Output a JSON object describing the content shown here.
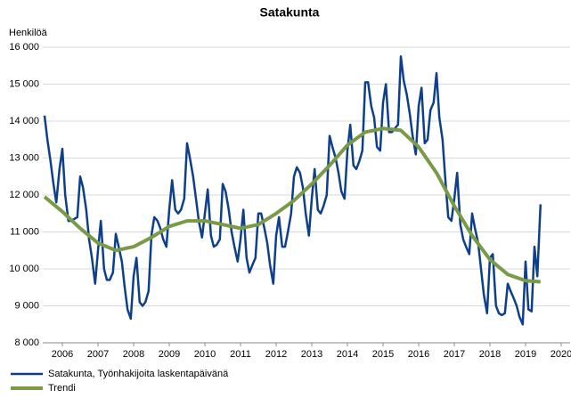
{
  "chart_data": {
    "type": "line",
    "title": "Satakunta",
    "y_label": "Henkilöä",
    "xlim": [
      2005.95,
      2020.75
    ],
    "ylim": [
      8000,
      16000
    ],
    "xticks": [
      {
        "value": 2006.5,
        "label": "2006"
      },
      {
        "value": 2007.5,
        "label": "2007"
      },
      {
        "value": 2008.5,
        "label": "2008"
      },
      {
        "value": 2009.5,
        "label": "2009"
      },
      {
        "value": 2010.5,
        "label": "2010"
      },
      {
        "value": 2011.5,
        "label": "2011"
      },
      {
        "value": 2012.5,
        "label": "2012"
      },
      {
        "value": 2013.5,
        "label": "2013"
      },
      {
        "value": 2014.5,
        "label": "2014"
      },
      {
        "value": 2015.5,
        "label": "2015"
      },
      {
        "value": 2016.5,
        "label": "2016"
      },
      {
        "value": 2017.5,
        "label": "2017"
      },
      {
        "value": 2018.5,
        "label": "2018"
      },
      {
        "value": 2019.5,
        "label": "2019"
      },
      {
        "value": 2020.5,
        "label": "2020"
      }
    ],
    "yticks": [
      {
        "value": 8000,
        "label": "8 000"
      },
      {
        "value": 9000,
        "label": "9 000"
      },
      {
        "value": 10000,
        "label": "10 000"
      },
      {
        "value": 11000,
        "label": "11 000"
      },
      {
        "value": 12000,
        "label": "12 000"
      },
      {
        "value": 13000,
        "label": "13 000"
      },
      {
        "value": 14000,
        "label": "14 000"
      },
      {
        "value": 15000,
        "label": "15 000"
      },
      {
        "value": 16000,
        "label": "16 000"
      }
    ],
    "grid": true,
    "legend": "bottom-left",
    "series": [
      {
        "name": "Satakunta, Työnhakijoita laskentapäivänä",
        "color": "#0d3f8a",
        "width": 2.5,
        "x": [
          2006.0,
          2006.08,
          2006.17,
          2006.25,
          2006.33,
          2006.42,
          2006.5,
          2006.58,
          2006.67,
          2006.75,
          2006.83,
          2006.92,
          2007.0,
          2007.08,
          2007.17,
          2007.25,
          2007.33,
          2007.42,
          2007.5,
          2007.58,
          2007.67,
          2007.75,
          2007.83,
          2007.92,
          2008.0,
          2008.08,
          2008.17,
          2008.25,
          2008.33,
          2008.42,
          2008.5,
          2008.58,
          2008.67,
          2008.75,
          2008.83,
          2008.92,
          2009.0,
          2009.08,
          2009.17,
          2009.25,
          2009.33,
          2009.42,
          2009.5,
          2009.58,
          2009.67,
          2009.75,
          2009.83,
          2009.92,
          2010.0,
          2010.08,
          2010.17,
          2010.25,
          2010.33,
          2010.42,
          2010.5,
          2010.58,
          2010.67,
          2010.75,
          2010.83,
          2010.92,
          2011.0,
          2011.08,
          2011.17,
          2011.25,
          2011.33,
          2011.42,
          2011.5,
          2011.58,
          2011.67,
          2011.75,
          2011.83,
          2011.92,
          2012.0,
          2012.08,
          2012.17,
          2012.25,
          2012.33,
          2012.42,
          2012.5,
          2012.58,
          2012.67,
          2012.75,
          2012.83,
          2012.92,
          2013.0,
          2013.08,
          2013.17,
          2013.25,
          2013.33,
          2013.42,
          2013.5,
          2013.58,
          2013.67,
          2013.75,
          2013.83,
          2013.92,
          2014.0,
          2014.08,
          2014.17,
          2014.25,
          2014.33,
          2014.42,
          2014.5,
          2014.58,
          2014.67,
          2014.75,
          2014.83,
          2014.92,
          2015.0,
          2015.08,
          2015.17,
          2015.25,
          2015.33,
          2015.42,
          2015.5,
          2015.58,
          2015.67,
          2015.75,
          2015.83,
          2015.92,
          2016.0,
          2016.08,
          2016.17,
          2016.25,
          2016.33,
          2016.42,
          2016.5,
          2016.58,
          2016.67,
          2016.75,
          2016.83,
          2016.92,
          2017.0,
          2017.08,
          2017.17,
          2017.25,
          2017.33,
          2017.42,
          2017.5,
          2017.58,
          2017.67,
          2017.75,
          2017.83,
          2017.92,
          2018.0,
          2018.08,
          2018.17,
          2018.25,
          2018.33,
          2018.42,
          2018.5,
          2018.58,
          2018.67,
          2018.75,
          2018.83,
          2018.92,
          2019.0,
          2019.08,
          2019.17,
          2019.25,
          2019.33,
          2019.42,
          2019.5,
          2019.58,
          2019.67,
          2019.75,
          2019.83,
          2019.92
        ],
        "values": [
          14150,
          13500,
          12900,
          12300,
          11800,
          12700,
          13250,
          12000,
          11300,
          11300,
          11350,
          11400,
          12500,
          12200,
          11600,
          10800,
          10300,
          9600,
          10500,
          11300,
          10000,
          9700,
          9700,
          9900,
          10950,
          10600,
          10200,
          9500,
          8900,
          8650,
          9800,
          10300,
          9100,
          9000,
          9100,
          9400,
          10900,
          11400,
          11300,
          11100,
          10800,
          10600,
          11600,
          12400,
          11600,
          11500,
          11600,
          11900,
          13400,
          13000,
          12500,
          11900,
          11300,
          10850,
          11500,
          12150,
          10900,
          10600,
          10650,
          10800,
          12300,
          12100,
          11600,
          11000,
          10600,
          10200,
          10800,
          11600,
          10300,
          9900,
          10100,
          10300,
          11500,
          11500,
          11100,
          10700,
          10100,
          9600,
          10900,
          11400,
          10600,
          10600,
          11000,
          11500,
          12500,
          12750,
          12600,
          12200,
          11500,
          10900,
          11900,
          12700,
          11600,
          11500,
          11700,
          12000,
          13600,
          13300,
          13000,
          12600,
          12100,
          11900,
          13200,
          13900,
          12800,
          12700,
          12900,
          13200,
          15050,
          15050,
          14400,
          14100,
          13300,
          13200,
          14500,
          15000,
          13700,
          13700,
          13800,
          13900,
          15750,
          15100,
          14700,
          14200,
          13600,
          13100,
          14400,
          14900,
          13400,
          13500,
          14300,
          14500,
          15300,
          14100,
          13500,
          12400,
          11400,
          11300,
          11900,
          12600,
          11200,
          10800,
          10600,
          10400,
          11500,
          11100,
          10700,
          10000,
          9300,
          8800,
          10300,
          10400,
          9000,
          8800,
          8750,
          8800,
          9600,
          9400,
          9200,
          9000,
          8700,
          8500,
          10200,
          8900,
          8850,
          10600,
          9800,
          11750
        ]
      },
      {
        "name": "Trendi",
        "color": "#7a9a47",
        "width": 4,
        "x": [
          2006.0,
          2006.5,
          2007.0,
          2007.5,
          2008.0,
          2008.5,
          2009.0,
          2009.5,
          2010.0,
          2010.5,
          2011.0,
          2011.5,
          2012.0,
          2012.5,
          2013.0,
          2013.5,
          2014.0,
          2014.5,
          2015.0,
          2015.5,
          2016.0,
          2016.5,
          2017.0,
          2017.5,
          2018.0,
          2018.5,
          2019.0,
          2019.5,
          2019.92
        ],
        "values": [
          11950,
          11550,
          11100,
          10700,
          10500,
          10600,
          10850,
          11150,
          11300,
          11300,
          11200,
          11100,
          11200,
          11500,
          11850,
          12300,
          12800,
          13350,
          13700,
          13800,
          13750,
          13300,
          12600,
          11700,
          10900,
          10250,
          9850,
          9680,
          9650
        ]
      }
    ]
  }
}
